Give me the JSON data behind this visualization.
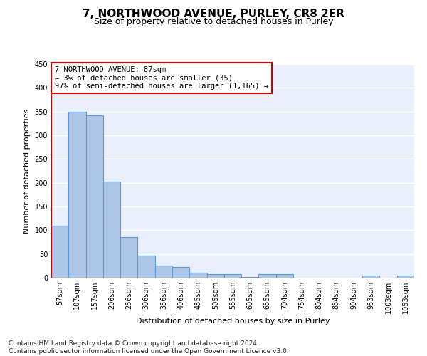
{
  "title": "7, NORTHWOOD AVENUE, PURLEY, CR8 2ER",
  "subtitle": "Size of property relative to detached houses in Purley",
  "xlabel": "Distribution of detached houses by size in Purley",
  "ylabel": "Number of detached properties",
  "bar_labels": [
    "57sqm",
    "107sqm",
    "157sqm",
    "206sqm",
    "256sqm",
    "306sqm",
    "356sqm",
    "406sqm",
    "455sqm",
    "505sqm",
    "555sqm",
    "605sqm",
    "655sqm",
    "704sqm",
    "754sqm",
    "804sqm",
    "854sqm",
    "904sqm",
    "953sqm",
    "1003sqm",
    "1053sqm"
  ],
  "bar_values": [
    110,
    349,
    342,
    203,
    85,
    46,
    25,
    23,
    10,
    7,
    7,
    2,
    7,
    7,
    0,
    0,
    0,
    0,
    5,
    0,
    5
  ],
  "bar_color": "#aec6e8",
  "bar_edge_color": "#5b9bd5",
  "annotation_box_color": "#cc0000",
  "annotation_line_color": "#cc0000",
  "annotation_text_line1": "7 NORTHWOOD AVENUE: 87sqm",
  "annotation_text_line2": "← 3% of detached houses are smaller (35)",
  "annotation_text_line3": "97% of semi-detached houses are larger (1,165) →",
  "footer_text": "Contains HM Land Registry data © Crown copyright and database right 2024.\nContains public sector information licensed under the Open Government Licence v3.0.",
  "ylim": [
    0,
    450
  ],
  "yticks": [
    0,
    50,
    100,
    150,
    200,
    250,
    300,
    350,
    400,
    450
  ],
  "background_color": "#eaf0fb",
  "grid_color": "#ffffff",
  "title_fontsize": 11,
  "subtitle_fontsize": 9,
  "ylabel_fontsize": 8,
  "xlabel_fontsize": 8,
  "tick_fontsize": 7,
  "annotation_fontsize": 7.5,
  "footer_fontsize": 6.5
}
